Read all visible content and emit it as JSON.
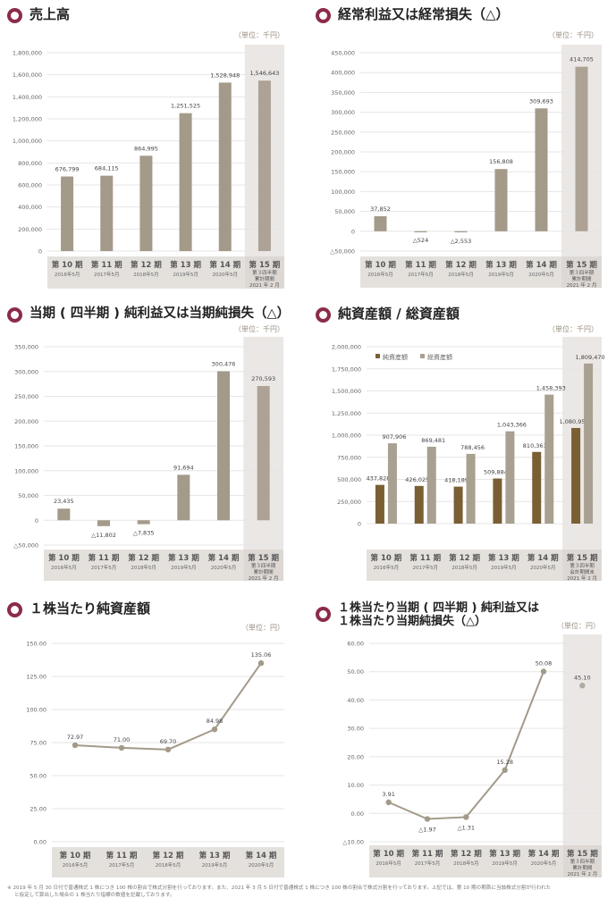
{
  "colors": {
    "accent_ring": "#8b2c48",
    "bar": "#a39a89",
    "bar_dark": "#7a5f34",
    "bar_light": "#a8a090",
    "highlight_bg": "#ebe7e5",
    "axis_band": "#e4e1dd",
    "line": "#a39a89",
    "grid": "#e6e6e6"
  },
  "categories": [
    {
      "period": "第 10 期",
      "date": "2016年5月"
    },
    {
      "period": "第 11 期",
      "date": "2017年5月"
    },
    {
      "period": "第 12 期",
      "date": "2018年5月"
    },
    {
      "period": "第 13 期",
      "date": "2019年5月"
    },
    {
      "period": "第 14 期",
      "date": "2020年5月"
    },
    {
      "period": "第 15 期",
      "sub1": "第３四半期",
      "sub2": "累計期間",
      "sub2_assets": "会計期間末",
      "date": "2021 年 2 月"
    }
  ],
  "chart_data": [
    {
      "id": "sales",
      "type": "bar",
      "title": "売上高",
      "unit": "（単位：千円）",
      "categories": [
        "第10期 2016年5月",
        "第11期 2017年5月",
        "第12期 2018年5月",
        "第13期 2019年5月",
        "第14期 2020年5月",
        "第15期 第3四半期累計期間 2021年2月"
      ],
      "values": [
        676799,
        684115,
        864995,
        1251525,
        1528948,
        1546643
      ],
      "labels": [
        "676,799",
        "684,115",
        "864,995",
        "1,251,525",
        "1,528,948",
        "1,546,643"
      ],
      "yticks": [
        "0",
        "200,000",
        "400,000",
        "600,000",
        "800,000",
        "1,000,000",
        "1,200,000",
        "1,400,000",
        "1,600,000",
        "1,800,000"
      ],
      "ylim": [
        0,
        1800000
      ],
      "grid": true
    },
    {
      "id": "ordinary",
      "type": "bar",
      "title": "経常利益又は経常損失（△）",
      "unit": "（単位：千円）",
      "categories": [
        "第10期 2016年5月",
        "第11期 2017年5月",
        "第12期 2018年5月",
        "第13期 2019年5月",
        "第14期 2020年5月",
        "第15期 第3四半期累計期間 2021年2月"
      ],
      "values": [
        37852,
        -524,
        -2553,
        156808,
        309693,
        414705
      ],
      "labels": [
        "37,852",
        "△524",
        "△2,553",
        "156,808",
        "309,693",
        "414,705"
      ],
      "yticks": [
        "△50,000",
        "0",
        "50,000",
        "100,000",
        "150,000",
        "200,000",
        "250,000",
        "300,000",
        "350,000",
        "400,000",
        "450,000"
      ],
      "ylim": [
        -50000,
        450000
      ],
      "grid": true
    },
    {
      "id": "netincome",
      "type": "bar",
      "title": "当期 ( 四半期 ) 純利益又は当期純損失（△）",
      "unit": "（単位：千円）",
      "categories": [
        "第10期 2016年5月",
        "第11期 2017年5月",
        "第12期 2018年5月",
        "第13期 2019年5月",
        "第14期 2020年5月",
        "第15期 第3四半期累計期間 2021年2月"
      ],
      "values": [
        23435,
        -11802,
        -7835,
        91694,
        300476,
        270593
      ],
      "labels": [
        "23,435",
        "△11,802",
        "△7,835",
        "91,694",
        "300,476",
        "270,593"
      ],
      "yticks": [
        "△50,000",
        "0",
        "50,000",
        "100,000",
        "150,000",
        "200,000",
        "250,000",
        "300,000",
        "350,000"
      ],
      "ylim": [
        -50000,
        350000
      ],
      "grid": true
    },
    {
      "id": "assets",
      "type": "bar",
      "title": "純資産額 / 総資産額",
      "unit": "（単位：千円）",
      "categories": [
        "第10期 2016年5月",
        "第11期 2017年5月",
        "第12期 2018年5月",
        "第13期 2019年5月",
        "第14期 2020年5月",
        "第15期 第3四半期会計期間末 2021年2月"
      ],
      "series": [
        {
          "name": "純資産額",
          "values": [
            437828,
            426025,
            418189,
            509884,
            810361,
            1080954
          ],
          "labels": [
            "437,828",
            "426,025",
            "418,189",
            "509,884",
            "810,361",
            "1,080,954"
          ]
        },
        {
          "name": "総資産額",
          "values": [
            907906,
            869481,
            788456,
            1043366,
            1458393,
            1809470
          ],
          "labels": [
            "907,906",
            "869,481",
            "788,456",
            "1,043,366",
            "1,458,393",
            "1,809,470"
          ]
        }
      ],
      "yticks": [
        "0",
        "250,000",
        "500,000",
        "750,000",
        "1,000,000",
        "1,250,000",
        "1,500,000",
        "1,750,000",
        "2,000,000"
      ],
      "ylim": [
        0,
        2000000
      ],
      "grid": true,
      "legend_position": "top-left"
    },
    {
      "id": "bps",
      "type": "line",
      "title": "１株当たり純資産額",
      "unit": "（単位：円）",
      "categories": [
        "第10期 2016年5月",
        "第11期 2017年5月",
        "第12期 2018年5月",
        "第13期 2019年5月",
        "第14期 2020年5月"
      ],
      "values": [
        72.97,
        71.0,
        69.7,
        84.98,
        135.06
      ],
      "labels": [
        "72.97",
        "71.00",
        "69.70",
        "84.98",
        "135.06"
      ],
      "yticks": [
        "0.00",
        "25.00",
        "50.00",
        "75.00",
        "100.00",
        "125.00",
        "150.00"
      ],
      "ylim": [
        0,
        150
      ],
      "grid": true
    },
    {
      "id": "eps",
      "type": "line",
      "title": "１株当たり当期 ( 四半期 ) 純利益又は\n１株当たり当期純損失（△）",
      "title_line1": "１株当たり当期 ( 四半期 ) 純利益又は",
      "title_line2": "１株当たり当期純損失（△）",
      "unit": "（単位：円）",
      "categories": [
        "第10期 2016年5月",
        "第11期 2017年5月",
        "第12期 2018年5月",
        "第13期 2019年5月",
        "第14期 2020年5月",
        "第15期 第3四半期累計期間 2021年2月"
      ],
      "values": [
        3.91,
        -1.97,
        -1.31,
        15.28,
        50.08,
        45.1
      ],
      "labels": [
        "3.91",
        "△1.97",
        "△1.31",
        "15.28",
        "50.08",
        "45.10"
      ],
      "note": "第15期 is plotted as an unconnected point",
      "yticks": [
        "△10.00",
        "0.00",
        "10.00",
        "20.00",
        "30.00",
        "40.00",
        "50.00",
        "60.00"
      ],
      "ylim": [
        -10,
        60
      ],
      "grid": true
    }
  ],
  "footnote": {
    "line1": "※ 2019 年 5 月 30 日付で普通株式 1 株につき 100 株の割合で株式分割を行っております。また、2021 年 3 月 5 日付で普通株式 1 株につき 100 株の割合で株式分割を行っております。上記では、第 10 期の期首に当該株式分割が行われた",
    "line2": "と仮定して算出した場合の 1 株当たり指標の数値を記載しております。"
  }
}
